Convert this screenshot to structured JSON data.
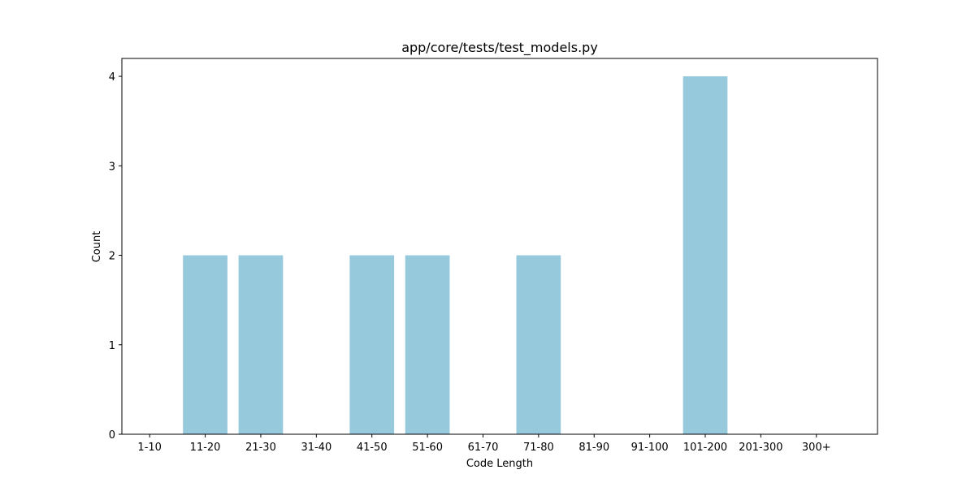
{
  "chart_data": {
    "type": "bar",
    "title": "app/core/tests/test_models.py",
    "xlabel": "Code Length",
    "ylabel": "Count",
    "categories": [
      "1-10",
      "11-20",
      "21-30",
      "31-40",
      "41-50",
      "51-60",
      "61-70",
      "71-80",
      "81-90",
      "91-100",
      "101-200",
      "201-300",
      "300+"
    ],
    "values": [
      0,
      2,
      2,
      0,
      2,
      2,
      0,
      2,
      0,
      0,
      4,
      0,
      0
    ],
    "ylim": [
      0,
      4.2
    ],
    "yticks": [
      0,
      1,
      2,
      3,
      4
    ],
    "bar_color": "#96c9dc",
    "grid": false,
    "legend": "none"
  }
}
